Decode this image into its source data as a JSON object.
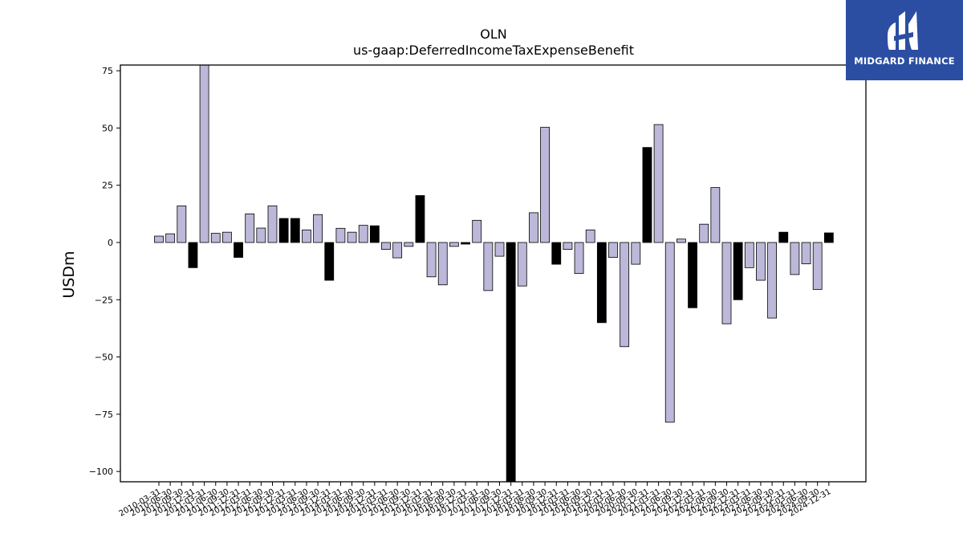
{
  "logo": {
    "text": "MIDGARD FINANCE",
    "background": "#2b4ea2"
  },
  "chart_data": {
    "type": "bar",
    "title": "OLN",
    "subtitle": "us-gaap:DeferredIncomeTaxExpenseBenefit",
    "ylabel": "USDm",
    "xlabel": "",
    "ylim": [
      -104.5,
      77.5
    ],
    "yticks": [
      75,
      50,
      25,
      0,
      -25,
      -50,
      -75,
      -100
    ],
    "grid": false,
    "colors": {
      "quarter": "#bcb8d9",
      "annual": "#000000"
    },
    "categories": [
      "2010-03-31",
      "2010-06-30",
      "2010-09-30",
      "2010-12-31",
      "2011-03-31",
      "2011-06-30",
      "2011-09-30",
      "2011-12-31",
      "2012-03-31",
      "2012-06-30",
      "2012-09-30",
      "2012-12-31",
      "2013-03-31",
      "2013-06-30",
      "2013-09-30",
      "2013-12-31",
      "2014-03-31",
      "2014-06-30",
      "2014-09-30",
      "2014-12-31",
      "2015-03-31",
      "2015-06-30",
      "2015-09-30",
      "2015-12-31",
      "2016-03-31",
      "2016-06-30",
      "2016-09-30",
      "2016-12-31",
      "2017-03-31",
      "2017-06-30",
      "2017-09-30",
      "2017-12-31",
      "2018-03-31",
      "2018-06-30",
      "2018-09-30",
      "2018-12-31",
      "2019-03-31",
      "2019-06-30",
      "2019-09-30",
      "2019-12-31",
      "2020-03-31",
      "2020-06-30",
      "2020-09-30",
      "2020-12-31",
      "2021-03-31",
      "2021-06-30",
      "2021-09-30",
      "2021-12-31",
      "2022-03-31",
      "2022-06-30",
      "2022-09-30",
      "2022-12-31",
      "2023-03-31",
      "2023-06-30",
      "2023-09-30",
      "2023-12-31",
      "2024-03-31",
      "2024-06-30",
      "2024-09-30",
      "2024-12-31"
    ],
    "values": [
      2.8,
      3.8,
      16,
      -11,
      78,
      4,
      4.5,
      -6.5,
      12.5,
      6.3,
      16,
      10.5,
      10.5,
      5.5,
      12.2,
      -16.5,
      6.2,
      4.5,
      7.5,
      7.3,
      -3,
      -6.7,
      -1.7,
      20.5,
      -15,
      -18.5,
      -1.7,
      -0.7,
      9.7,
      -21,
      -6,
      -105,
      -19,
      13,
      50.3,
      -9.5,
      -3,
      -13.5,
      5.5,
      -35,
      -6.5,
      -45.5,
      -9.5,
      41.5,
      51.5,
      -78.5,
      1.5,
      -28.5,
      8,
      24,
      -35.5,
      -25,
      -11,
      -16.5,
      -33,
      4.5,
      -14,
      -9.3,
      -20.5,
      4.2
    ],
    "annual_flags": [
      0,
      0,
      0,
      1,
      0,
      0,
      0,
      1,
      0,
      0,
      0,
      1,
      1,
      0,
      0,
      1,
      0,
      0,
      0,
      1,
      0,
      0,
      0,
      1,
      0,
      0,
      0,
      1,
      0,
      0,
      0,
      1,
      0,
      0,
      0,
      1,
      0,
      0,
      0,
      1,
      0,
      0,
      0,
      1,
      0,
      0,
      0,
      1,
      0,
      0,
      0,
      1,
      0,
      0,
      0,
      1,
      0,
      0,
      0,
      1
    ],
    "x_tick_labels": [
      "2010-03-31",
      "2010-06-30",
      "2010-09-30",
      "2010-12-31",
      "2011-03-31",
      "2011-06-30",
      "2011-09-30",
      "2011-12-31",
      "2012-03-31",
      "2012-06-30",
      "2012-09-30",
      "2012-12-31",
      "2013-03-31",
      "2013-06-30",
      "2013-09-30",
      "2013-12-31",
      "2014-03-31",
      "2014-06-30",
      "2014-09-30",
      "2014-12-31",
      "2015-03-31",
      "2015-06-30",
      "2015-09-30",
      "2015-12-31",
      "2016-03-31",
      "2016-06-30",
      "2016-09-30",
      "2016-12-31",
      "2017-03-31",
      "2017-06-30",
      "2017-09-30",
      "2017-12-31",
      "2018-03-31",
      "2018-06-30",
      "2018-09-30",
      "2018-12-31",
      "2019-03-31",
      "2019-06-30",
      "2019-09-30",
      "2019-12-31",
      "2020-03-31",
      "2020-06-30",
      "2020-09-30",
      "2020-12-31",
      "2021-03-31",
      "2021-06-30",
      "2021-09-30",
      "2021-12-31",
      "2022-03-31",
      "2022-06-30",
      "2022-09-30",
      "2022-12-31",
      "2023-03-31",
      "2023-06-30",
      "2023-09-30",
      "2023-12-31",
      "2024-03-31",
      "2024-06-30",
      "2024-09-30",
      "2024-12-31"
    ]
  }
}
